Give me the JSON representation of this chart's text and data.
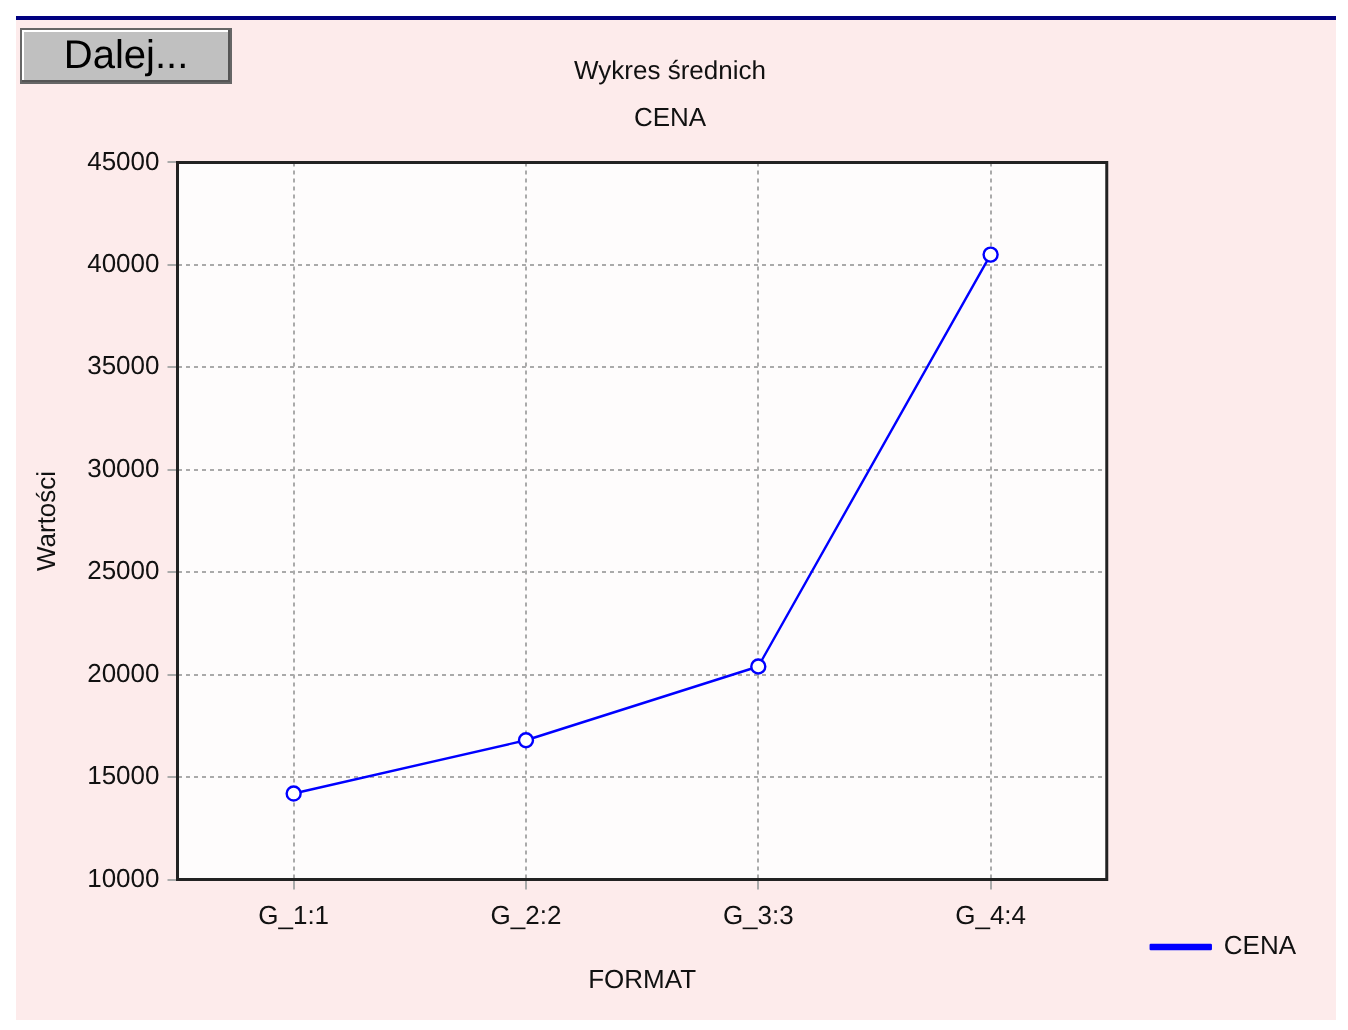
{
  "chart_data": {
    "type": "line",
    "title": "Wykres średnich",
    "subtitle": "CENA",
    "xlabel": "FORMAT",
    "ylabel": "Wartości",
    "annotations": [
      "Dalej..."
    ],
    "categories": [
      "G_1:1",
      "G_2:2",
      "G_3:3",
      "G_4:4"
    ],
    "series": [
      {
        "name": "CENA",
        "color": "#0000ff",
        "values": [
          14200,
          16800,
          20400,
          40500
        ]
      }
    ],
    "ylim": [
      10000,
      45000
    ],
    "yticks": [
      10000,
      15000,
      20000,
      25000,
      30000,
      35000,
      40000,
      45000
    ],
    "grid": true,
    "legend": "bottom right",
    "marker": "circle",
    "line_style": "solid"
  }
}
